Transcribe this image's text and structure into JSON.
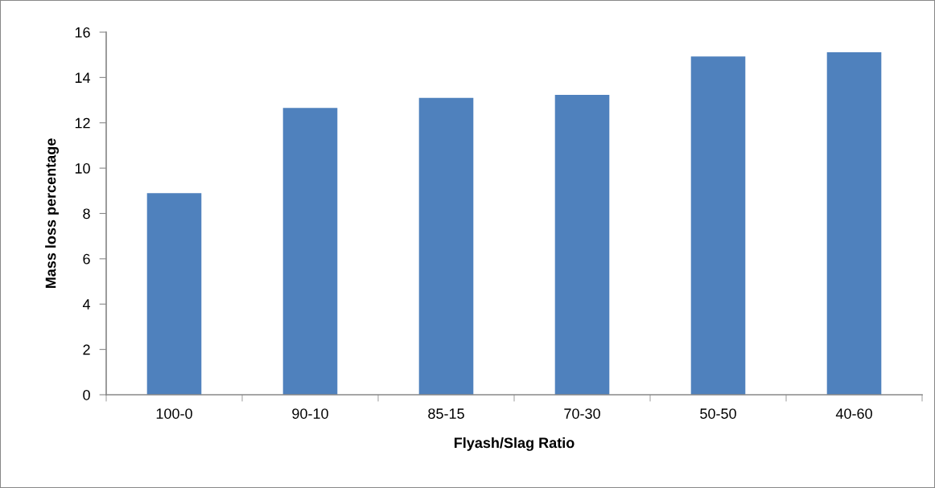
{
  "chart_data": {
    "type": "bar",
    "xlabel": "Flyash/Slag Ratio",
    "ylabel": "Mass loss percentage",
    "categories": [
      "100-0",
      "90-10",
      "85-15",
      "70-30",
      "50-50",
      "40-60"
    ],
    "values": [
      8.9,
      12.66,
      13.1,
      13.23,
      14.93,
      15.11
    ],
    "color": "#4f81bd",
    "ylim": [
      0,
      16
    ],
    "yticks": [
      0,
      2,
      4,
      6,
      8,
      10,
      12,
      14,
      16
    ],
    "grid": false
  }
}
